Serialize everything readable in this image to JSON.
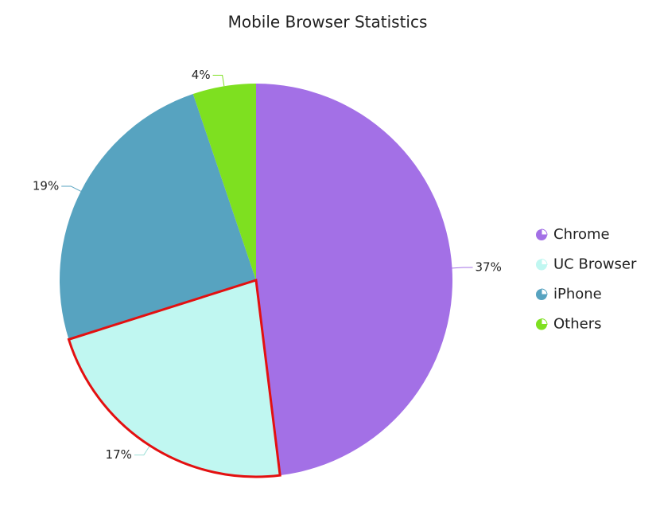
{
  "chart_data": {
    "type": "pie",
    "title": "Mobile Browser Statistics",
    "categories": [
      "Chrome",
      "UC Browser",
      "iPhone",
      "Others"
    ],
    "values": [
      37,
      17,
      19,
      4
    ],
    "value_labels": [
      "37%",
      "17%",
      "19%",
      "4%"
    ],
    "colors": [
      "#a370e6",
      "#c0f7f1",
      "#57a3c0",
      "#7ee020"
    ],
    "selected": 1,
    "selected_color": "#e31010",
    "legend": "right"
  }
}
